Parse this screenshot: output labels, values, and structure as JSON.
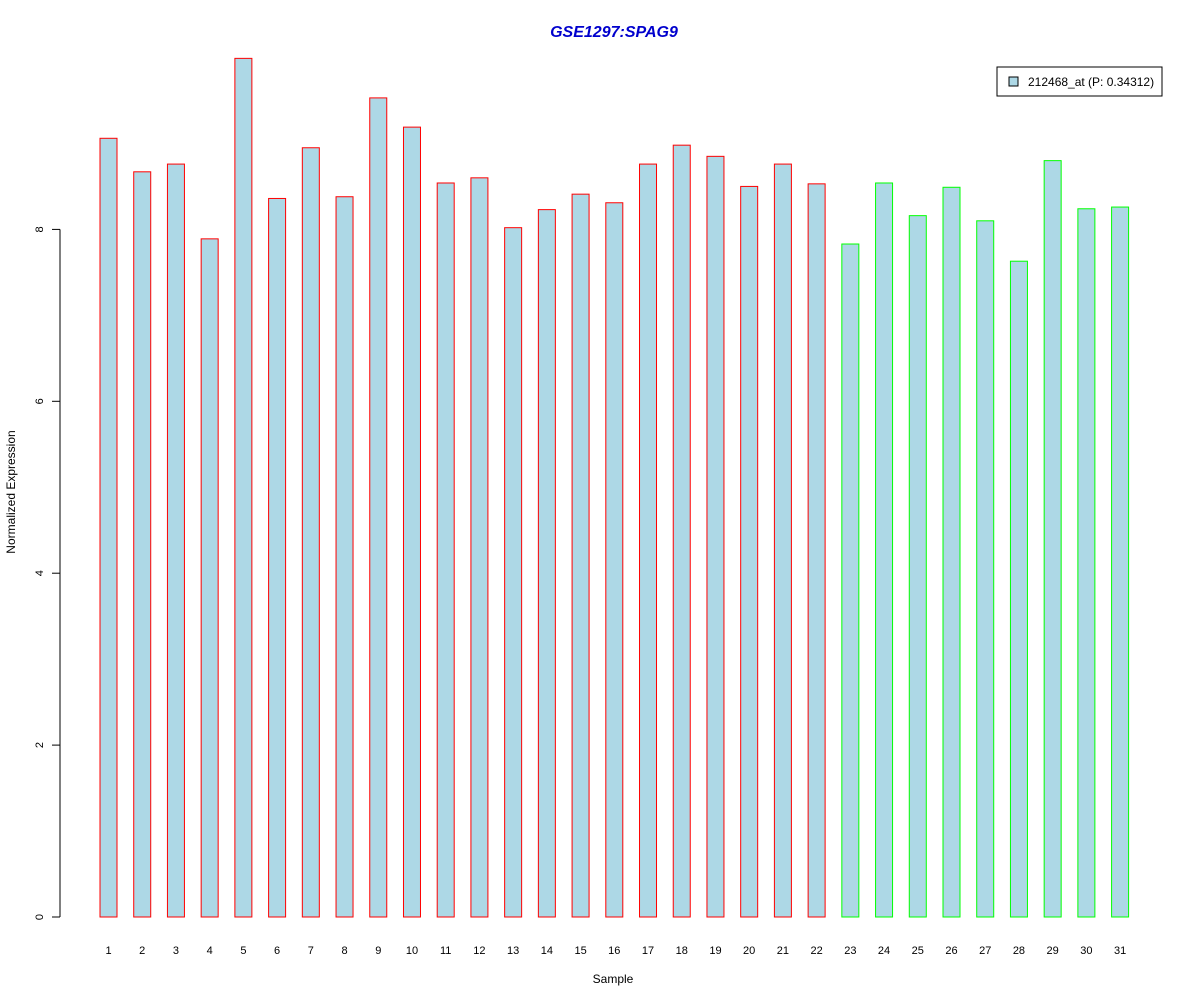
{
  "chart_data": {
    "type": "bar",
    "title": "GSE1297:SPAG9",
    "xlabel": "Sample",
    "ylabel": "Normalized Expression",
    "categories": [
      "1",
      "2",
      "3",
      "4",
      "5",
      "6",
      "7",
      "8",
      "9",
      "10",
      "11",
      "12",
      "13",
      "14",
      "15",
      "16",
      "17",
      "18",
      "19",
      "20",
      "21",
      "22",
      "23",
      "24",
      "25",
      "26",
      "27",
      "28",
      "29",
      "30",
      "31"
    ],
    "series": [
      {
        "name": "212468_at (P: 0.34312)",
        "values": [
          9.06,
          8.67,
          8.76,
          7.89,
          9.99,
          8.36,
          8.95,
          8.38,
          9.53,
          9.19,
          8.54,
          8.6,
          8.02,
          8.23,
          8.41,
          8.31,
          8.76,
          8.98,
          8.85,
          8.5,
          8.76,
          8.53,
          7.83,
          8.54,
          8.16,
          8.49,
          8.1,
          7.63,
          8.8,
          8.24,
          8.26
        ]
      }
    ],
    "groups": [
      "1",
      "1",
      "1",
      "1",
      "1",
      "1",
      "1",
      "1",
      "1",
      "1",
      "1",
      "1",
      "1",
      "1",
      "1",
      "1",
      "1",
      "1",
      "1",
      "1",
      "1",
      "1",
      "2",
      "2",
      "2",
      "2",
      "2",
      "2",
      "2",
      "2",
      "2"
    ],
    "ylim": [
      0,
      10
    ],
    "yticks": [
      0,
      2,
      4,
      6,
      8
    ],
    "legend_position": "top-right",
    "grid": false,
    "colors": {
      "bar_fill": "#add8e6",
      "group1_border": "#ff0000",
      "group2_border": "#00ff00",
      "title": "#0000cd",
      "axis": "#000000"
    }
  }
}
